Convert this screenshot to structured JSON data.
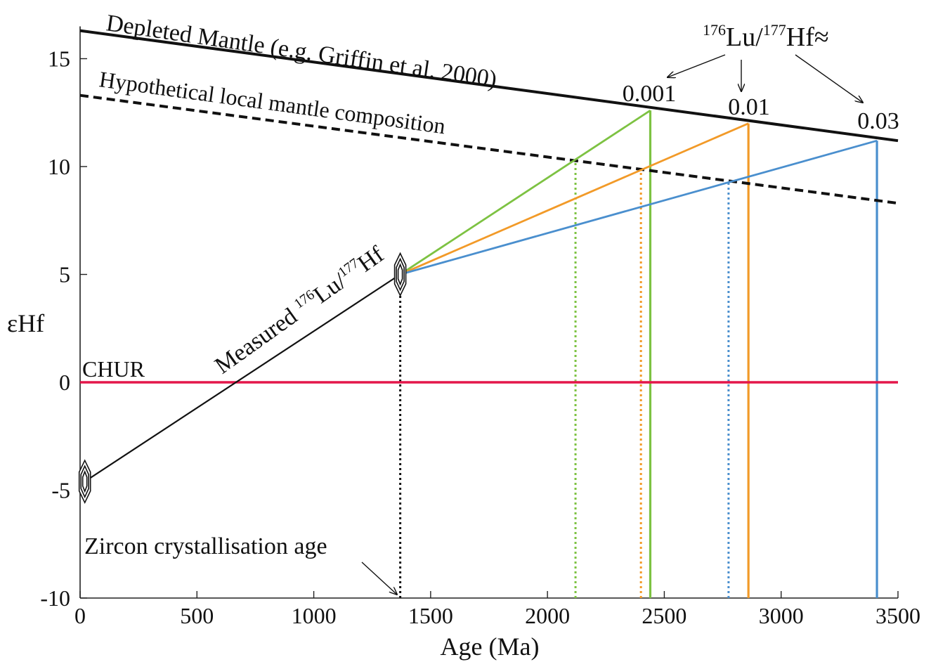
{
  "chart_data": {
    "type": "line",
    "title": "",
    "xlabel": "Age (Ma)",
    "ylabel": "εHf",
    "xlim": [
      0,
      3500
    ],
    "ylim": [
      -10,
      16.5
    ],
    "xticks": [
      0,
      500,
      1000,
      1500,
      2000,
      2500,
      3000,
      3500
    ],
    "yticks": [
      15,
      10,
      5,
      0,
      -5,
      -10
    ],
    "grid": false,
    "colors": {
      "axis": "#222222",
      "depleted": "#111111",
      "chur": "#e4164a",
      "measured": "#111111",
      "green": "#7dc242",
      "orange": "#f29a28",
      "blue": "#4a8fce"
    },
    "series": [
      {
        "name": "Depleted Mantle (e.g. Griffin et al. 2000)",
        "key": "depleted",
        "style": "solid",
        "x": [
          0,
          3500
        ],
        "y": [
          16.3,
          11.2
        ]
      },
      {
        "name": "Hypothetical local mantle composition",
        "key": "local",
        "style": "dashed",
        "x": [
          0,
          3500
        ],
        "y": [
          13.3,
          8.3
        ]
      },
      {
        "name": "CHUR",
        "key": "chur",
        "style": "solid",
        "x": [
          0,
          3500
        ],
        "y": [
          0,
          0
        ]
      },
      {
        "name": "Measured 176Lu/177Hf",
        "key": "measured",
        "style": "solid",
        "x": [
          20,
          1370
        ],
        "y": [
          -4.6,
          5.0
        ]
      },
      {
        "name": "0.001",
        "key": "green",
        "style": "solid",
        "x": [
          1370,
          2440
        ],
        "y": [
          5.0,
          12.6
        ]
      },
      {
        "name": "0.01",
        "key": "orange",
        "style": "solid",
        "x": [
          1370,
          2860
        ],
        "y": [
          5.0,
          12.0
        ]
      },
      {
        "name": "0.03",
        "key": "blue",
        "style": "solid",
        "x": [
          1370,
          3410
        ],
        "y": [
          5.0,
          11.2
        ]
      }
    ],
    "vertical_lines": [
      {
        "key": "measured",
        "style": "dotted",
        "x": 1370,
        "y": [
          -10,
          5.0
        ]
      },
      {
        "key": "green",
        "style": "dotted",
        "x": 2120,
        "y": [
          -10,
          10.3
        ]
      },
      {
        "key": "orange",
        "style": "dotted",
        "x": 2400,
        "y": [
          -10,
          9.9
        ]
      },
      {
        "key": "blue",
        "style": "dotted",
        "x": 2775,
        "y": [
          -10,
          9.3
        ]
      },
      {
        "key": "green",
        "style": "solid",
        "x": 2440,
        "y": [
          -10,
          12.6
        ]
      },
      {
        "key": "orange",
        "style": "solid",
        "x": 2860,
        "y": [
          -10,
          12.0
        ]
      },
      {
        "key": "blue",
        "style": "solid",
        "x": 3410,
        "y": [
          -10,
          11.2
        ]
      }
    ],
    "zircon_markers": [
      {
        "x": 20,
        "y": -4.6
      },
      {
        "x": 1370,
        "y": 5.0
      }
    ],
    "annotations": {
      "depleted": "Depleted Mantle (e.g. Griffin et al. 2000)",
      "local": "Hypothetical local mantle composition",
      "chur": "CHUR",
      "measured_prefix": "Measured ",
      "lu_sup": "176",
      "lu": "Lu/",
      "hf_sup": "177",
      "hf": "Hf",
      "ratio_approx": "≈",
      "ratio_001": "0.001",
      "ratio_01": "0.01",
      "ratio_03": "0.03",
      "zircon_age": "Zircon crystallisation age"
    }
  }
}
